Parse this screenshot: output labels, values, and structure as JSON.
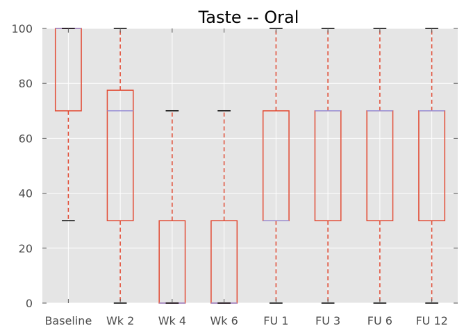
{
  "chart_data": {
    "type": "box",
    "title": "Taste -- Oral",
    "xlabel": "",
    "ylabel": "",
    "ylim": [
      0,
      100
    ],
    "yticks": [
      0,
      20,
      40,
      60,
      80,
      100
    ],
    "grid": true,
    "categories": [
      "Baseline",
      "Wk 2",
      "Wk 4",
      "Wk 6",
      "FU 1",
      "FU 3",
      "FU 6",
      "FU 12"
    ],
    "boxes": [
      {
        "label": "Baseline",
        "whislo": 30,
        "q1": 70,
        "med": 100,
        "q3": 100,
        "whishi": 100
      },
      {
        "label": "Wk 2",
        "whislo": 0,
        "q1": 30,
        "med": 70,
        "q3": 77.5,
        "whishi": 100
      },
      {
        "label": "Wk 4",
        "whislo": 0,
        "q1": 0,
        "med": 0,
        "q3": 30,
        "whishi": 70
      },
      {
        "label": "Wk 6",
        "whislo": 0,
        "q1": 0,
        "med": 0,
        "q3": 30,
        "whishi": 70
      },
      {
        "label": "FU 1",
        "whislo": 0,
        "q1": 30,
        "med": 30,
        "q3": 70,
        "whishi": 100
      },
      {
        "label": "FU 3",
        "whislo": 0,
        "q1": 30,
        "med": 70,
        "q3": 70,
        "whishi": 100
      },
      {
        "label": "FU 6",
        "whislo": 0,
        "q1": 30,
        "med": 70,
        "q3": 70,
        "whishi": 100
      },
      {
        "label": "FU 12",
        "whislo": 0,
        "q1": 30,
        "med": 70,
        "q3": 70,
        "whishi": 100
      }
    ],
    "colors": {
      "background": "#e5e5e5",
      "grid": "#ffffff",
      "box": "#e24a33",
      "median": "#988ed5",
      "whisker": "#e24a33",
      "cap": "#000000",
      "tick_label": "#4d4d4d"
    }
  }
}
